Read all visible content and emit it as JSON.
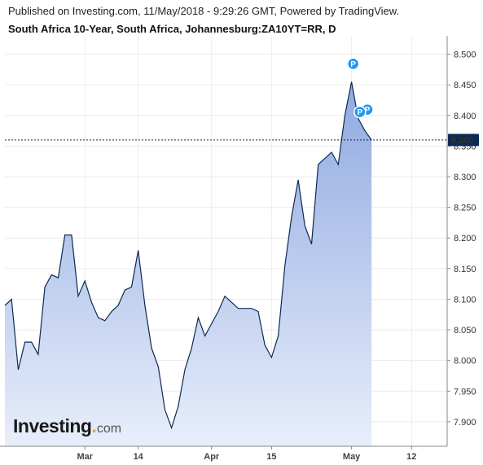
{
  "header": {
    "published": "Published on Investing.com, 11/May/2018 - 9:29:26 GMT, Powered by TradingView.",
    "symbol": "South Africa 10-Year, South Africa, Johannesburg:ZA10YT=RR, D"
  },
  "logo": {
    "main": "Investing",
    "dot": ".",
    "suffix": "com"
  },
  "colors": {
    "line": "#0c2a52",
    "fill_top": "#8fa9e0",
    "fill_bottom": "#e8eefb",
    "last_price_bg": "#0c2a52",
    "marker": "#2196f3",
    "grid": "#ececec"
  },
  "chart_data": {
    "type": "area",
    "title": "South Africa 10-Year, South Africa, Johannesburg:ZA10YT=RR, D",
    "ylim": [
      7.86,
      8.53
    ],
    "yticks": [
      "7.900",
      "7.950",
      "8.000",
      "8.050",
      "8.100",
      "8.150",
      "8.200",
      "8.250",
      "8.300",
      "8.350",
      "8.400",
      "8.450",
      "8.500"
    ],
    "xticks": [
      {
        "label": "Mar",
        "index": 12
      },
      {
        "label": "14",
        "index": 20
      },
      {
        "label": "Apr",
        "index": 31
      },
      {
        "label": "15",
        "index": 40
      },
      {
        "label": "May",
        "index": 52
      },
      {
        "label": "12",
        "index": 61
      }
    ],
    "x_count": 66,
    "values": [
      8.09,
      8.1,
      7.985,
      8.03,
      8.03,
      8.01,
      8.12,
      8.14,
      8.135,
      8.205,
      8.205,
      8.105,
      8.13,
      8.095,
      8.07,
      8.065,
      8.08,
      8.09,
      8.115,
      8.12,
      8.18,
      8.09,
      8.02,
      7.99,
      7.92,
      7.89,
      7.925,
      7.985,
      8.02,
      8.07,
      8.04,
      8.06,
      8.08,
      8.105,
      8.095,
      8.085,
      8.085,
      8.085,
      8.08,
      8.025,
      8.005,
      8.04,
      8.155,
      8.235,
      8.295,
      8.22,
      8.19,
      8.32,
      8.33,
      8.34,
      8.32,
      8.4,
      8.455,
      8.395,
      8.375,
      8.36
    ],
    "last_price": "8.360",
    "last_value": 8.36,
    "markers": [
      {
        "label": "P",
        "index": 52
      },
      {
        "label": "P",
        "index": 54
      },
      {
        "label": "P",
        "index": 53
      }
    ]
  }
}
